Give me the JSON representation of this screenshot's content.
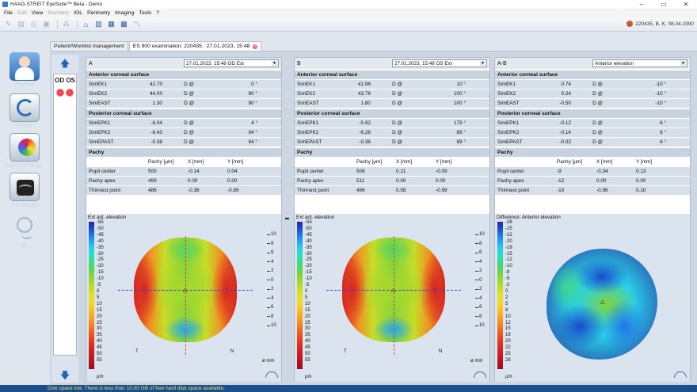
{
  "window": {
    "title": "HAAG-STREIT EyeSuite™  Beta  -  Demo",
    "controls": [
      "–",
      "▭",
      "✕"
    ]
  },
  "menu": [
    {
      "label": "File",
      "enabled": true
    },
    {
      "label": "Edit",
      "enabled": false
    },
    {
      "label": "View",
      "enabled": true
    },
    {
      "label": "Biometry",
      "enabled": false
    },
    {
      "label": "IOL",
      "enabled": true
    },
    {
      "label": "Perimetry",
      "enabled": true
    },
    {
      "label": "Imaging",
      "enabled": true
    },
    {
      "label": "Tools",
      "enabled": true
    },
    {
      "label": "?",
      "enabled": true
    }
  ],
  "patient_info": "220435, B, K, 08.04.1990",
  "nav": [
    {
      "label": "Patients"
    },
    {
      "label": "C-Suite"
    },
    {
      "label": "Extended Topog..."
    },
    {
      "label": "AC-Imaging"
    },
    {
      "label": "IOL"
    }
  ],
  "tabs": [
    "Patient/Worklist management",
    "ES 900 examination: 220435 : 27.01.2023, 15:48"
  ],
  "eye_selector": "OD OS",
  "panels": [
    {
      "id": "A",
      "select": "27.01.2023, 15:48 OD Ext",
      "ant_title": "Anterior corneal surface",
      "ant": [
        [
          "SimEK1",
          "42.70",
          "D @",
          "0 °"
        ],
        [
          "SimEK2",
          "44.00",
          "D @",
          "90 °"
        ],
        [
          "SimEAST",
          "1.30",
          "D @",
          "90 °"
        ]
      ],
      "post_title": "Posterior corneal surface",
      "post": [
        [
          "SimEPK1",
          "-6.04",
          "D @",
          "4 °"
        ],
        [
          "SimEPK2",
          "-6.43",
          "D @",
          "94 °"
        ],
        [
          "SimEPAST",
          "-0.38",
          "D @",
          "94 °"
        ]
      ],
      "pachy_title": "Pachy",
      "pachy_header": [
        "",
        "Pachy [µm]",
        "X [mm]",
        "Y [mm]"
      ],
      "pachy": [
        [
          "Pupil center",
          "500",
          "-0.14",
          "0.04"
        ],
        [
          "Pachy apex",
          "499",
          "0.00",
          "0.00"
        ],
        [
          "Thinnest point",
          "486",
          "-0.38",
          "-0.89"
        ]
      ],
      "map_title": "Ext ant. elevation",
      "legend": [
        "-55",
        "-50",
        "-45",
        "-40",
        "-35",
        "-30",
        "-25",
        "-20",
        "-15",
        "-10",
        "-5",
        "0",
        "5",
        "10",
        "15",
        "20",
        "25",
        "30",
        "35",
        "40",
        "45",
        "50",
        "55"
      ],
      "unit": "µm",
      "t_label": "T",
      "n_label": "N",
      "omm": "ø mm",
      "scale": [
        "10",
        "8",
        "6",
        "4",
        "2",
        "0",
        "2",
        "4",
        "6",
        "8",
        "10"
      ]
    },
    {
      "id": "B",
      "select": "27.01.2023, 15:48 OS Ext",
      "ant_title": "Anterior corneal surface",
      "ant": [
        [
          "SimEK1",
          "41.96",
          "D @",
          "10 °"
        ],
        [
          "SimEK2",
          "43.76",
          "D @",
          "100 °"
        ],
        [
          "SimEAST",
          "1.80",
          "D @",
          "100 °"
        ]
      ],
      "post_title": "Posterior corneal surface",
      "post": [
        [
          "SimEPK1",
          "-5.92",
          "D @",
          "179 °"
        ],
        [
          "SimEPK2",
          "-6.28",
          "D @",
          "89 °"
        ],
        [
          "SimEPAST",
          "-0.36",
          "D @",
          "89 °"
        ]
      ],
      "pachy_title": "Pachy",
      "pachy_header": [
        "",
        "Pachy [µm]",
        "X [mm]",
        "Y [mm]"
      ],
      "pachy": [
        [
          "Pupil center",
          "508",
          "0.21",
          "-0.09"
        ],
        [
          "Pachy apex",
          "511",
          "0.00",
          "0.00"
        ],
        [
          "Thinnest point",
          "496",
          "0.58",
          "-0.99"
        ]
      ],
      "map_title": "Ext ant. elevation",
      "legend": [
        "-55",
        "-50",
        "-45",
        "-40",
        "-35",
        "-30",
        "-25",
        "-20",
        "-15",
        "-10",
        "-5",
        "0",
        "5",
        "10",
        "15",
        "20",
        "25",
        "30",
        "35",
        "40",
        "45",
        "50",
        "55"
      ],
      "unit": "µm",
      "t_label": "T",
      "n_label": "N",
      "omm": "ø mm",
      "scale": [
        "10",
        "8",
        "6",
        "4",
        "2",
        "0",
        "2",
        "4",
        "6",
        "8",
        "10"
      ]
    },
    {
      "id": "A-B",
      "select": "Anterior elevation",
      "ant_title": "Anterior corneal surface",
      "ant": [
        [
          "SimEK1",
          "0.74",
          "D @",
          "-10 °"
        ],
        [
          "SimEK2",
          "0.24",
          "D @",
          "-10 °"
        ],
        [
          "SimEAST",
          "-0.50",
          "D @",
          "-10 °"
        ]
      ],
      "post_title": "Posterior corneal surface",
      "post": [
        [
          "SimEPK1",
          "-0.12",
          "D @",
          "6 °"
        ],
        [
          "SimEPK2",
          "-0.14",
          "D @",
          "6 °"
        ],
        [
          "SimEPAST",
          "-0.02",
          "D @",
          "6 °"
        ]
      ],
      "pachy_title": "Pachy",
      "pachy_header": [
        "",
        "Pachy [µm]",
        "X [mm]",
        "Y [mm]"
      ],
      "pachy": [
        [
          "Pupil center",
          "-9",
          "-0.34",
          "0.13"
        ],
        [
          "Pachy apex",
          "-12",
          "0.00",
          "0.00"
        ],
        [
          "Thinnest point",
          "-10",
          "-0.96",
          "0.10"
        ]
      ],
      "map_title": "Difference: Anterior elevation",
      "legend": [
        "-28",
        "-25",
        "-22",
        "-20",
        "-18",
        "-15",
        "-12",
        "-10",
        "-8",
        "-5",
        "-2",
        "0",
        "2",
        "5",
        "8",
        "10",
        "12",
        "15",
        "18",
        "20",
        "22",
        "25",
        "28"
      ],
      "unit": "µm",
      "t_label": "",
      "n_label": "",
      "omm": "",
      "scale": []
    }
  ],
  "status": "Disk space low. There is less than 10.00 GB of free hard disk space available."
}
